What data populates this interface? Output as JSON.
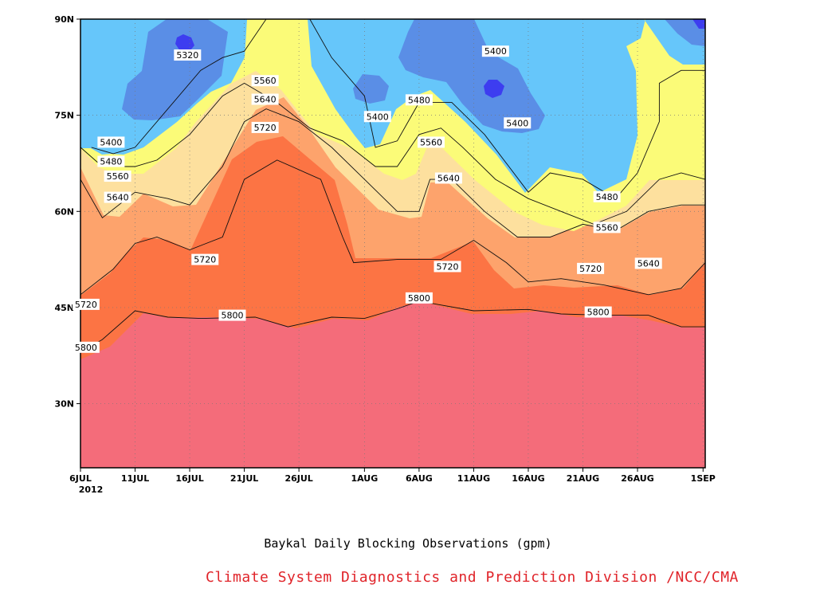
{
  "chart_data": {
    "type": "heatmap",
    "title": "Baykal Daily Blocking Observations (gpm)",
    "credit": "Climate System Diagnostics and Prediction Division /NCC/CMA",
    "x_tick_labels": [
      "6JUL",
      "11JUL",
      "16JUL",
      "21JUL",
      "26JUL",
      "1AUG",
      "6AUG",
      "11AUG",
      "16AUG",
      "21AUG",
      "26AUG",
      "1SEP"
    ],
    "x_tick_days": [
      0,
      5,
      10,
      15,
      20,
      26,
      31,
      36,
      41,
      46,
      51,
      57
    ],
    "year_label": "2012",
    "x_range_days": [
      0,
      57.2
    ],
    "y_tick_labels": [
      "30N",
      "45N",
      "60N",
      "75N",
      "90N"
    ],
    "y_tick_values": [
      30,
      45,
      60,
      75,
      90
    ],
    "y_range_lat": [
      20,
      90
    ],
    "grid": true,
    "contour_levels": [
      5320,
      5400,
      5480,
      5560,
      5640,
      5720,
      5800
    ],
    "fill_colors": {
      "below_5320": "#3d3df0",
      "5320_5400": "#5a8ee6",
      "5400_5480": "#66c6fa",
      "5480_5560": "#fbfb78",
      "5560_5640": "#fde09e",
      "5640_5720": "#fda36c",
      "5720_5800": "#fc7444",
      "above_5800": "#f46c7a"
    },
    "contour_lines": [
      {
        "level": 5800,
        "points": [
          [
            0,
            38
          ],
          [
            2,
            40
          ],
          [
            5,
            44.5
          ],
          [
            8,
            43.5
          ],
          [
            11,
            43.3
          ],
          [
            16,
            43.5
          ],
          [
            19,
            42
          ],
          [
            23,
            43.5
          ],
          [
            26,
            43.3
          ],
          [
            29,
            44.8
          ],
          [
            31,
            46
          ],
          [
            36,
            44.5
          ],
          [
            41,
            44.7
          ],
          [
            44,
            44
          ],
          [
            48,
            43.8
          ],
          [
            52,
            43.8
          ],
          [
            55,
            42
          ],
          [
            57.2,
            42
          ]
        ]
      },
      {
        "level": 5720,
        "points": [
          [
            0,
            47
          ],
          [
            3,
            51
          ],
          [
            5,
            55
          ],
          [
            7,
            56
          ],
          [
            10,
            54
          ],
          [
            13,
            56
          ],
          [
            15,
            65
          ],
          [
            18,
            68
          ],
          [
            22,
            65
          ],
          [
            24,
            56
          ],
          [
            25,
            52
          ],
          [
            29,
            52.5
          ],
          [
            33,
            52.5
          ],
          [
            36,
            55.5
          ],
          [
            39,
            52
          ],
          [
            41,
            49
          ],
          [
            44,
            49.5
          ],
          [
            48,
            48.5
          ],
          [
            52,
            47
          ],
          [
            55,
            48
          ],
          [
            57.2,
            52
          ]
        ]
      },
      {
        "level": 5640,
        "points": [
          [
            0,
            65
          ],
          [
            2,
            59
          ],
          [
            5,
            63
          ],
          [
            8,
            62
          ],
          [
            10,
            61
          ],
          [
            13,
            67
          ],
          [
            15,
            74
          ],
          [
            17,
            76
          ],
          [
            20,
            74
          ],
          [
            23,
            70
          ],
          [
            26,
            65
          ],
          [
            29,
            60
          ],
          [
            31,
            60
          ],
          [
            32,
            65
          ],
          [
            34,
            65
          ],
          [
            37,
            60
          ],
          [
            40,
            56
          ],
          [
            43,
            56
          ],
          [
            46,
            58
          ],
          [
            49,
            57
          ],
          [
            52,
            60
          ],
          [
            55,
            61
          ],
          [
            57.2,
            61
          ]
        ]
      },
      {
        "level": 5560,
        "points": [
          [
            0,
            70
          ],
          [
            2,
            67
          ],
          [
            5,
            67
          ],
          [
            7,
            68
          ],
          [
            10,
            72
          ],
          [
            13,
            78
          ],
          [
            15,
            80
          ],
          [
            18,
            77
          ],
          [
            21,
            73
          ],
          [
            24,
            71
          ],
          [
            27,
            67
          ],
          [
            29,
            67
          ],
          [
            31,
            72
          ],
          [
            33,
            73
          ],
          [
            35,
            70
          ],
          [
            38,
            65
          ],
          [
            41,
            62
          ],
          [
            44,
            60
          ],
          [
            47,
            58
          ],
          [
            50,
            60
          ],
          [
            53,
            65
          ],
          [
            55,
            66
          ],
          [
            57.2,
            65
          ]
        ]
      },
      {
        "level": 5480,
        "points": [
          [
            1,
            70
          ],
          [
            3,
            69
          ],
          [
            5,
            70
          ],
          [
            8,
            76
          ],
          [
            11,
            82
          ],
          [
            13,
            84
          ],
          [
            15,
            85
          ],
          [
            17,
            90
          ],
          [
            21,
            90
          ],
          [
            23,
            84
          ],
          [
            26,
            78
          ],
          [
            27,
            70
          ],
          [
            29,
            71
          ],
          [
            31,
            77
          ],
          [
            34,
            77
          ],
          [
            37,
            72
          ],
          [
            41,
            63
          ],
          [
            43,
            66
          ],
          [
            46,
            65
          ],
          [
            49,
            62
          ],
          [
            51,
            66
          ],
          [
            53,
            74
          ],
          [
            53,
            80
          ],
          [
            55,
            82
          ],
          [
            57.2,
            82
          ]
        ]
      }
    ],
    "annotations": [
      {
        "text": "5320",
        "day": 9.8,
        "lat": 84.4
      },
      {
        "text": "5400",
        "day": 2.8,
        "lat": 70.8
      },
      {
        "text": "5480",
        "day": 2.8,
        "lat": 67.8
      },
      {
        "text": "5560",
        "day": 3.4,
        "lat": 65.5
      },
      {
        "text": "5640",
        "day": 3.4,
        "lat": 62.2
      },
      {
        "text": "5720",
        "day": 0.5,
        "lat": 45.5
      },
      {
        "text": "5800",
        "day": 0.5,
        "lat": 38.8
      },
      {
        "text": "5560",
        "day": 16.9,
        "lat": 80.4
      },
      {
        "text": "5640",
        "day": 16.9,
        "lat": 77.5
      },
      {
        "text": "5720",
        "day": 16.9,
        "lat": 73.1
      },
      {
        "text": "5720",
        "day": 11.4,
        "lat": 52.5
      },
      {
        "text": "5800",
        "day": 13.9,
        "lat": 43.8
      },
      {
        "text": "5400",
        "day": 27.2,
        "lat": 74.8
      },
      {
        "text": "5480",
        "day": 31.0,
        "lat": 77.4
      },
      {
        "text": "5560",
        "day": 32.1,
        "lat": 70.8
      },
      {
        "text": "5640",
        "day": 33.7,
        "lat": 65.2
      },
      {
        "text": "5720",
        "day": 33.6,
        "lat": 51.4
      },
      {
        "text": "5800",
        "day": 31.0,
        "lat": 46.5
      },
      {
        "text": "5400",
        "day": 38.0,
        "lat": 85.0
      },
      {
        "text": "5400",
        "day": 40.0,
        "lat": 73.8
      },
      {
        "text": "5480",
        "day": 48.2,
        "lat": 62.3
      },
      {
        "text": "5560",
        "day": 48.2,
        "lat": 57.5
      },
      {
        "text": "5720",
        "day": 46.7,
        "lat": 51.1
      },
      {
        "text": "5800",
        "day": 47.4,
        "lat": 44.3
      },
      {
        "text": "5640",
        "day": 52.0,
        "lat": 51.9
      }
    ]
  }
}
